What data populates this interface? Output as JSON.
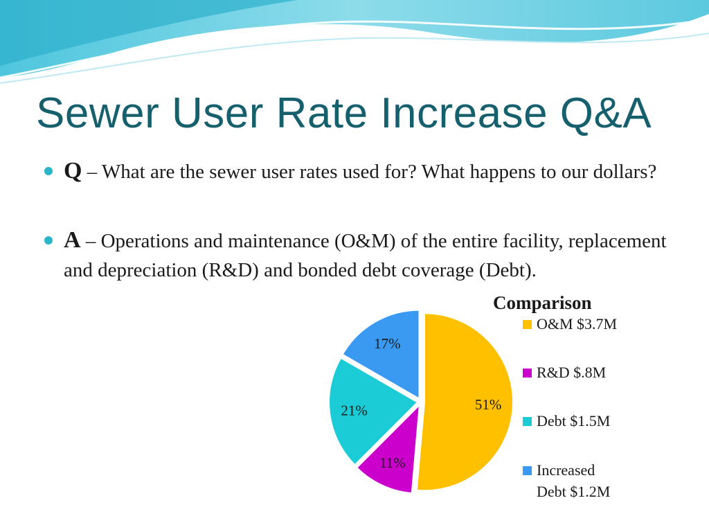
{
  "slide": {
    "title": "Sewer User Rate Increase Q&A",
    "bullets": [
      {
        "key": "Q",
        "text": " – What are the sewer user rates used for? What happens to our dollars?"
      },
      {
        "key": "A",
        "text": " – Operations and maintenance (O&M) of the entire facility, replacement and depreciation (R&D) and bonded debt coverage (Debt)."
      }
    ]
  },
  "chart_data": {
    "type": "pie",
    "title": "Comparison",
    "legend_position": "right",
    "labels": [
      "O&M $3.7M",
      "R&D $.8M",
      "Debt $1.5M",
      "Increased Debt $1.2M"
    ],
    "values": [
      3.7,
      0.8,
      1.5,
      1.2
    ],
    "percent_labels": [
      "51%",
      "11%",
      "21%",
      "17%"
    ],
    "colors": [
      "#ffc000",
      "#cc00cc",
      "#1bccd6",
      "#3a9af2"
    ]
  }
}
